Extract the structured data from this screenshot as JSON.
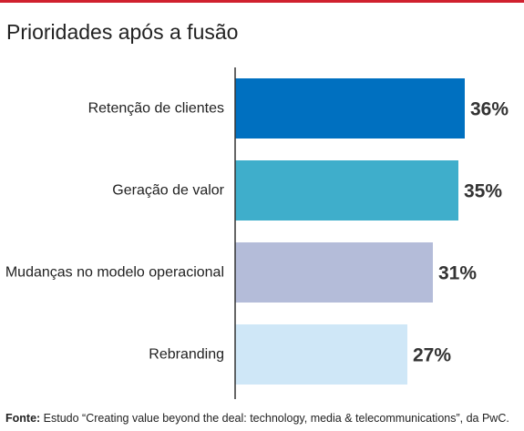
{
  "header": {
    "accent_color": "#d0202e"
  },
  "chart_data": {
    "type": "bar",
    "orientation": "horizontal",
    "title": "Prioridades após a fusão",
    "categories": [
      "Retenção de clientes",
      "Geração de valor",
      "Mudanças no modelo operacional",
      "Rebranding"
    ],
    "values": [
      36,
      35,
      31,
      27
    ],
    "value_labels": [
      "36%",
      "35%",
      "31%",
      "27%"
    ],
    "bar_colors": [
      "#0070c0",
      "#3faecb",
      "#b4bcd9",
      "#cfe7f7"
    ],
    "xlim": [
      0,
      36
    ],
    "grid": false
  },
  "source": {
    "label": "Fonte:",
    "text": "Estudo “Creating value beyond the deal: technology, media & telecommunications”, da PwC."
  }
}
